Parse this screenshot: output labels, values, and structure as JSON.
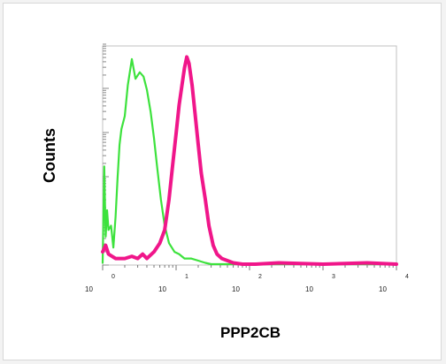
{
  "chart_data": {
    "type": "line",
    "xlabel": "PPP2CB",
    "ylabel": "Counts",
    "x_scale": "log",
    "xlim": [
      1,
      10000
    ],
    "ylim": [
      0,
      1
    ],
    "grid": false,
    "x_ticks": [
      {
        "value": 1,
        "base": "10",
        "exp": "0"
      },
      {
        "value": 10,
        "base": "10",
        "exp": "1"
      },
      {
        "value": 100,
        "base": "10",
        "exp": "2"
      },
      {
        "value": 1000,
        "base": "10",
        "exp": "3"
      },
      {
        "value": 10000,
        "base": "10",
        "exp": "4"
      }
    ],
    "series": [
      {
        "color": "#3de23d",
        "x": [
          1.0,
          1.05,
          1.1,
          1.15,
          1.2,
          1.3,
          1.4,
          1.5,
          1.6,
          1.7,
          1.8,
          2.0,
          2.2,
          2.5,
          2.8,
          3.2,
          3.6,
          4.0,
          4.5,
          5.0,
          5.5,
          6.2,
          7.0,
          8.0,
          9.5,
          11,
          13,
          16,
          20,
          25,
          30,
          1000,
          10000
        ],
        "y": [
          0.01,
          0.45,
          0.13,
          0.25,
          0.16,
          0.18,
          0.08,
          0.22,
          0.4,
          0.55,
          0.62,
          0.68,
          0.82,
          0.94,
          0.85,
          0.88,
          0.86,
          0.8,
          0.7,
          0.58,
          0.45,
          0.3,
          0.18,
          0.1,
          0.06,
          0.05,
          0.03,
          0.03,
          0.02,
          0.01,
          0.0,
          0.0,
          0.0
        ]
      },
      {
        "color": "#f0168a",
        "x": [
          1.0,
          1.1,
          1.2,
          1.5,
          2.0,
          2.5,
          3.0,
          3.5,
          4.0,
          5.0,
          6.0,
          7.0,
          8.0,
          9.0,
          10.0,
          11.0,
          12.0,
          13.0,
          14.0,
          15.0,
          16.5,
          18.0,
          20.0,
          22.0,
          25.0,
          28.0,
          32.0,
          36.0,
          42.0,
          50.0,
          60.0,
          80.0,
          120.0,
          250.0,
          1000,
          4000,
          10000
        ],
        "y": [
          0.06,
          0.09,
          0.05,
          0.03,
          0.03,
          0.04,
          0.03,
          0.05,
          0.03,
          0.06,
          0.1,
          0.16,
          0.3,
          0.46,
          0.6,
          0.73,
          0.82,
          0.9,
          0.95,
          0.92,
          0.82,
          0.7,
          0.55,
          0.42,
          0.3,
          0.18,
          0.09,
          0.05,
          0.03,
          0.02,
          0.01,
          0.0,
          0.0,
          0.01,
          0.0,
          0.01,
          0.0
        ]
      }
    ]
  }
}
